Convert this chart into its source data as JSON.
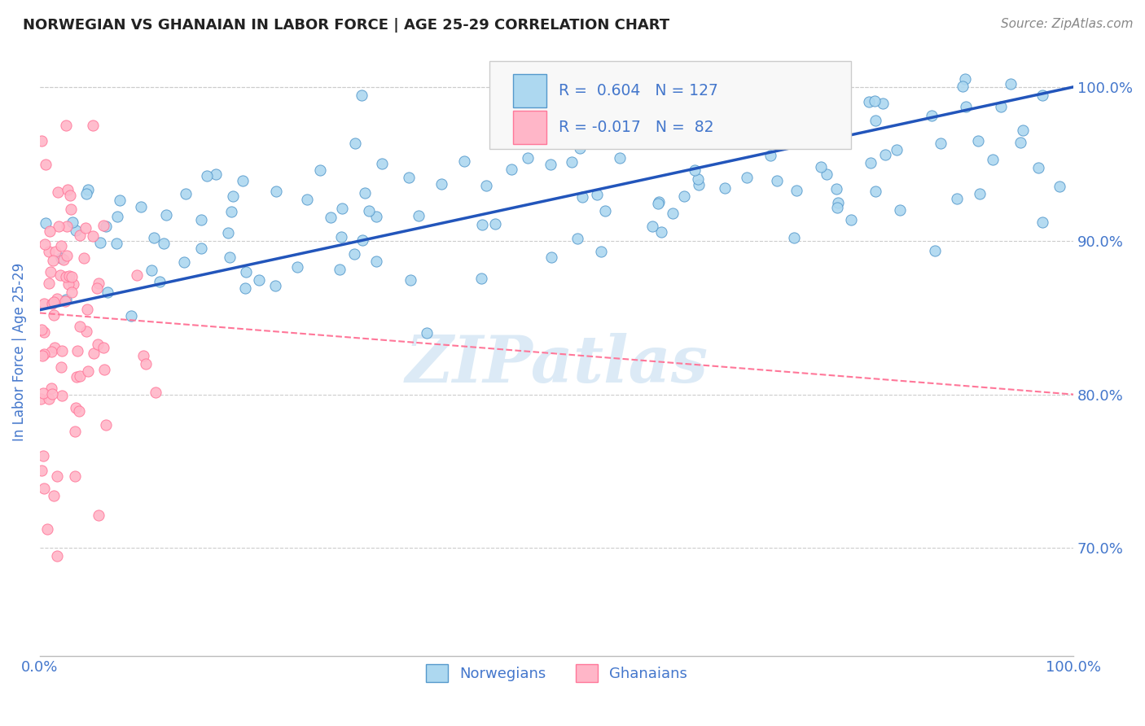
{
  "title": "NORWEGIAN VS GHANAIAN IN LABOR FORCE | AGE 25-29 CORRELATION CHART",
  "source_text": "Source: ZipAtlas.com",
  "ylabel": "In Labor Force | Age 25-29",
  "xmin": 0.0,
  "xmax": 1.0,
  "ymin": 0.63,
  "ymax": 1.025,
  "yticks": [
    0.7,
    0.8,
    0.9,
    1.0
  ],
  "ytick_labels": [
    "70.0%",
    "80.0%",
    "90.0%",
    "100.0%"
  ],
  "xticks": [
    0.0,
    1.0
  ],
  "xtick_labels": [
    "0.0%",
    "100.0%"
  ],
  "norwegian_R": 0.604,
  "norwegian_N": 127,
  "ghanaian_R": -0.017,
  "ghanaian_N": 82,
  "norwegian_color": "#ADD8F0",
  "ghanaian_color": "#FFB6C8",
  "norwegian_edge": "#5599CC",
  "ghanaian_edge": "#FF7799",
  "trend_norwegian_color": "#2255BB",
  "trend_ghanaian_color": "#FF7799",
  "background_color": "#ffffff",
  "title_color": "#222222",
  "axis_label_color": "#4477CC",
  "tick_color": "#4477CC",
  "watermark": "ZIPatlas",
  "watermark_color": "#C5DDF0",
  "legend_color": "#4477CC",
  "seed": 42,
  "nor_trend_y0": 0.855,
  "nor_trend_y1": 1.0,
  "gha_trend_y0": 0.853,
  "gha_trend_y1": 0.8
}
